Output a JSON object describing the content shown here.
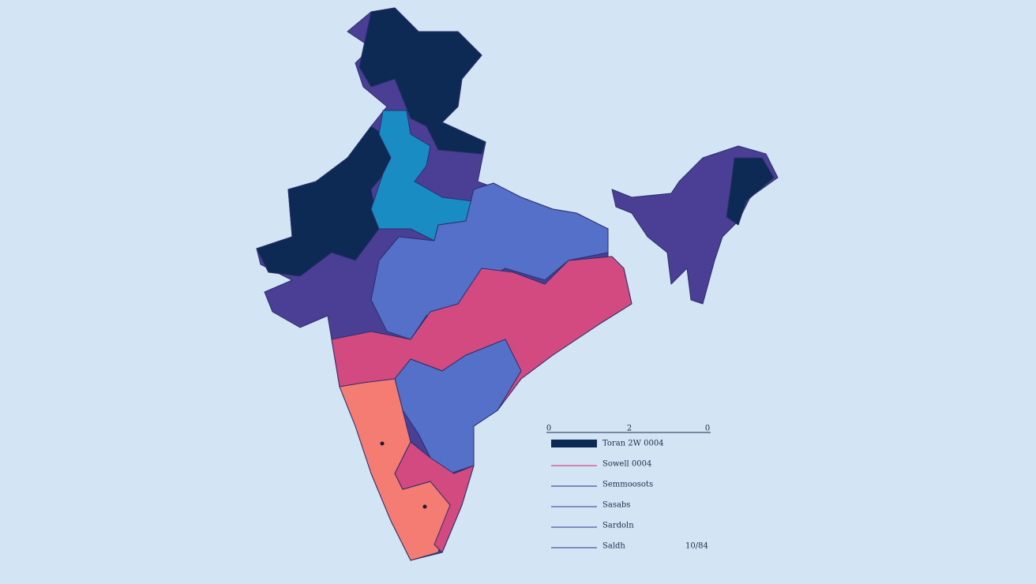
{
  "scale": {
    "ticks": [
      "0",
      "2",
      "0"
    ]
  },
  "legend": [
    {
      "label": "Toran 2W 0004",
      "color": "#0d2a55"
    },
    {
      "label": "Sowell 0004",
      "color": "#d24a80"
    },
    {
      "label": "Semmoosots",
      "color": "#4b4f9c"
    },
    {
      "label": "Sasabs",
      "color": "#4b5aa0"
    },
    {
      "label": "Sardoln",
      "color": "#4b5aa0"
    },
    {
      "label": "Saldh",
      "color": "#4b5aa0"
    }
  ],
  "note": "10/84"
}
